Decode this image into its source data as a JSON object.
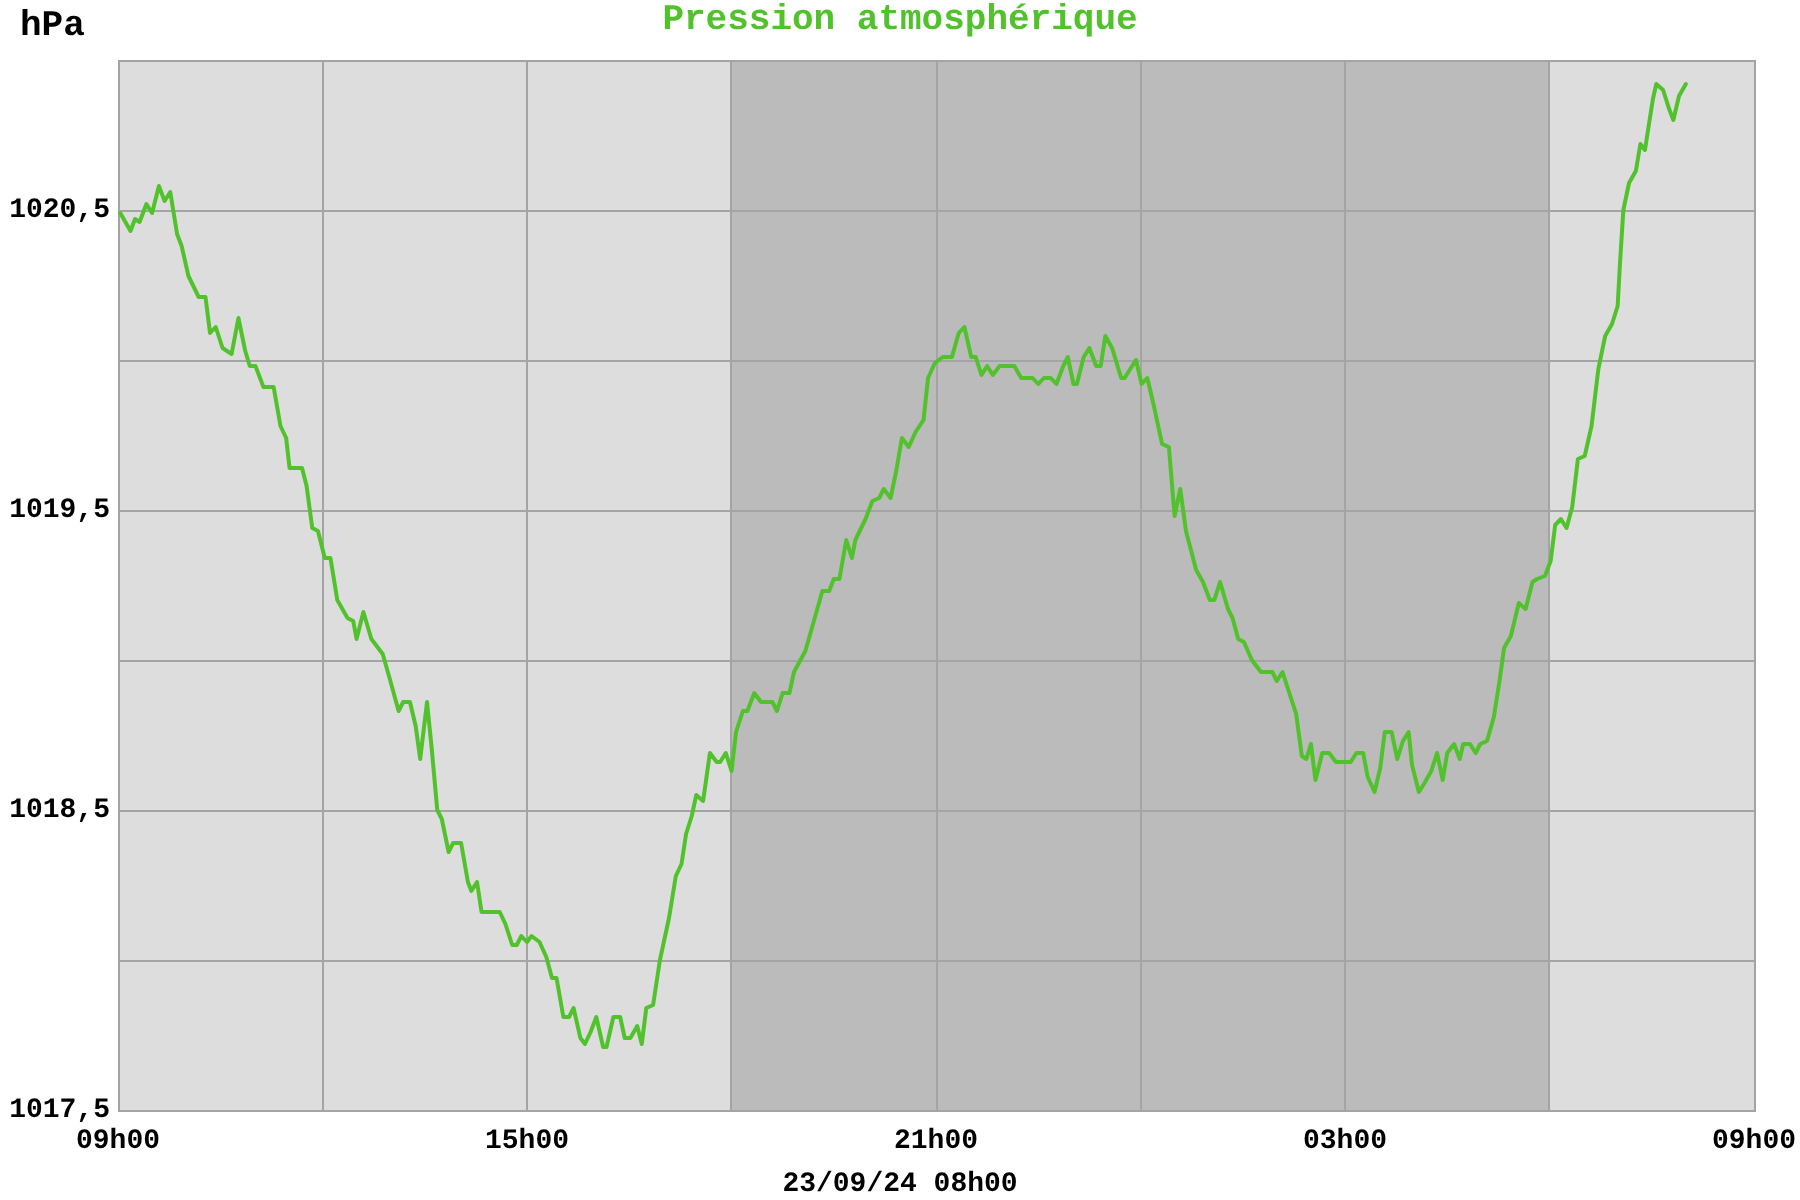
{
  "chart_data": {
    "type": "line",
    "title": "Pression atmosphérique",
    "xlabel": "23/09/24 08h00",
    "ylabel": "hPa",
    "x": [
      "--09-22T09:02",
      "--09-22T09:11",
      "--09-22T09:15",
      "--09-22T09:19",
      "--09-22T09:25",
      "--09-22T09:30",
      "--09-22T09:36",
      "--09-22T09:41",
      "--09-22T09:46",
      "--09-22T09:52",
      "--09-22T09:56",
      "--09-22T10:02",
      "--09-22T10:11",
      "--09-22T10:17",
      "--09-22T10:21",
      "--09-22T10:26",
      "--09-22T10:32",
      "--09-22T10:40",
      "--09-22T10:46",
      "--09-22T10:52",
      "--09-22T10:56",
      "--09-22T11:01",
      "--09-22T11:08",
      "--09-22T11:17",
      "--09-22T11:23",
      "--09-22T11:28",
      "--09-22T11:31",
      "--09-22T11:42",
      "--09-22T11:46",
      "--09-22T11:51",
      "--09-22T11:56",
      "--09-22T12:02",
      "--09-22T12:07",
      "--09-22T12:13",
      "--09-22T12:22",
      "--09-22T12:27",
      "--09-22T12:30",
      "--09-22T12:36",
      "--09-22T12:43",
      "--09-22T12:53",
      "--09-22T12:59",
      "--09-22T13:07",
      "--09-22T13:11",
      "--09-22T13:17",
      "--09-22T13:22",
      "--09-22T13:26",
      "--09-22T13:32",
      "--09-22T13:36",
      "--09-22T13:41",
      "--09-22T13:45",
      "--09-22T13:51",
      "--09-22T13:55",
      "--09-22T14:02",
      "--09-22T14:08",
      "--09-22T14:11",
      "--09-22T14:16",
      "--09-22T14:20",
      "--09-22T14:36",
      "--09-22T14:41",
      "--09-22T14:47",
      "--09-22T14:51",
      "--09-22T14:55",
      "--09-22T15:00",
      "--09-22T15:04",
      "--09-22T15:11",
      "--09-22T15:17",
      "--09-22T15:22",
      "--09-22T15:26",
      "--09-22T15:32",
      "--09-22T15:37",
      "--09-22T15:41",
      "--09-22T15:47",
      "--09-22T15:51",
      "--09-22T15:56",
      "--09-22T16:01",
      "--09-22T16:07",
      "--09-22T16:10",
      "--09-22T16:16",
      "--09-22T16:22",
      "--09-22T16:26",
      "--09-22T16:31",
      "--09-22T16:37",
      "--09-22T16:41",
      "--09-22T16:45",
      "--09-22T16:51",
      "--09-22T16:57",
      "--09-22T17:05",
      "--09-22T17:11",
      "--09-22T17:16",
      "--09-22T17:20",
      "--09-22T17:25",
      "--09-22T17:29",
      "--09-22T17:35",
      "--09-22T17:41",
      "--09-22T17:47",
      "--09-22T17:50",
      "--09-22T17:55",
      "--09-22T18:00",
      "--09-22T18:04",
      "--09-22T18:10",
      "--09-22T18:14",
      "--09-22T18:20",
      "--09-22T18:26",
      "--09-22T18:36",
      "--09-22T18:40",
      "--09-22T18:45",
      "--09-22T18:51",
      "--09-22T18:55",
      "--09-22T19:05",
      "--09-22T19:11",
      "--09-22T19:20",
      "--09-22T19:26",
      "--09-22T19:30",
      "--09-22T19:35",
      "--09-22T19:41",
      "--09-22T19:46",
      "--09-22T19:49",
      "--09-22T19:58",
      "--09-22T20:04",
      "--09-22T20:10",
      "--09-22T20:14",
      "--09-22T20:20",
      "--09-22T20:25",
      "--09-22T20:30",
      "--09-22T20:36",
      "--09-22T20:42",
      "--09-22T20:49",
      "--09-22T20:53",
      "--09-22T20:59",
      "--09-22T21:06",
      "--09-22T21:14",
      "--09-22T21:20",
      "--09-22T21:25",
      "--09-22T21:31",
      "--09-22T21:35",
      "--09-22T21:40",
      "--09-22T21:45",
      "--09-22T21:50",
      "--09-22T21:56",
      "--09-22T22:09",
      "--09-22T22:15",
      "--09-22T22:25",
      "--09-22T22:30",
      "--09-22T22:35",
      "--09-22T22:41",
      "--09-22T22:46",
      "--09-22T22:52",
      "--09-22T22:56",
      "--09-22T23:01",
      "--09-22T23:04",
      "--09-22T23:10",
      "--09-22T23:15",
      "--09-22T23:21",
      "--09-22T23:25",
      "--09-22T23:29",
      "--09-22T23:35",
      "--09-22T23:43",
      "--09-22T23:46",
      "--09-22T23:56",
      "--09-23T00:01",
      "--09-23T00:06",
      "--09-23T00:11",
      "--09-23T00:19",
      "--09-23T00:25",
      "--09-23T00:30",
      "--09-23T00:35",
      "--09-23T00:40",
      "--09-23T00:49",
      "--09-23T00:55",
      "--09-23T01:01",
      "--09-23T01:05",
      "--09-23T01:10",
      "--09-23T01:17",
      "--09-23T01:21",
      "--09-23T01:26",
      "--09-23T01:31",
      "--09-23T01:38",
      "--09-23T01:46",
      "--09-23T01:56",
      "--09-23T02:00",
      "--09-23T02:05",
      "--09-23T02:11",
      "--09-23T02:17",
      "--09-23T02:22",
      "--09-23T02:26",
      "--09-23T02:30",
      "--09-23T02:34",
      "--09-23T02:40",
      "--09-23T02:46",
      "--09-23T02:52",
      "--09-23T03:05",
      "--09-23T03:10",
      "--09-23T03:16",
      "--09-23T03:20",
      "--09-23T03:26",
      "--09-23T03:31",
      "--09-23T03:35",
      "--09-23T03:41",
      "--09-23T03:46",
      "--09-23T03:51",
      "--09-23T03:56",
      "--09-23T03:59",
      "--09-23T04:05",
      "--09-23T04:10",
      "--09-23T04:16",
      "--09-23T04:21",
      "--09-23T04:26",
      "--09-23T04:30",
      "--09-23T04:36",
      "--09-23T04:41",
      "--09-23T04:44",
      "--09-23T04:50",
      "--09-23T04:55",
      "--09-23T04:59",
      "--09-23T05:05",
      "--09-23T05:11",
      "--09-23T05:16",
      "--09-23T05:20",
      "--09-23T05:26",
      "--09-23T05:33",
      "--09-23T05:39",
      "--09-23T05:45",
      "--09-23T05:49",
      "--09-23T05:56",
      "--09-23T06:01",
      "--09-23T06:05",
      "--09-23T06:10",
      "--09-23T06:15",
      "--09-23T06:20",
      "--09-23T06:25",
      "--09-23T06:31",
      "--09-23T06:37",
      "--09-23T06:43",
      "--09-23T06:49",
      "--09-23T06:55",
      "--09-23T07:00",
      "--09-23T07:02",
      "--09-23T07:05",
      "--09-23T07:10",
      "--09-23T07:16",
      "--09-23T07:20",
      "--09-23T07:24",
      "--09-23T07:31",
      "--09-23T07:34",
      "--09-23T07:40",
      "--09-23T07:45",
      "--09-23T07:49",
      "--09-23T07:54",
      "--09-23T08:00"
    ],
    "series": [
      {
        "color": "#52c22c",
        "values": [
          1020.49,
          1020.43,
          1020.47,
          1020.46,
          1020.52,
          1020.49,
          1020.58,
          1020.53,
          1020.56,
          1020.42,
          1020.38,
          1020.28,
          1020.21,
          1020.21,
          1020.09,
          1020.11,
          1020.04,
          1020.02,
          1020.14,
          1020.03,
          1019.98,
          1019.98,
          1019.91,
          1019.91,
          1019.78,
          1019.74,
          1019.64,
          1019.64,
          1019.58,
          1019.44,
          1019.43,
          1019.34,
          1019.34,
          1019.2,
          1019.14,
          1019.13,
          1019.07,
          1019.16,
          1019.07,
          1019.02,
          1018.94,
          1018.83,
          1018.86,
          1018.86,
          1018.78,
          1018.67,
          1018.86,
          1018.71,
          1018.5,
          1018.47,
          1018.36,
          1018.39,
          1018.39,
          1018.26,
          1018.23,
          1018.26,
          1018.16,
          1018.16,
          1018.12,
          1018.05,
          1018.05,
          1018.08,
          1018.06,
          1018.08,
          1018.06,
          1018.01,
          1017.94,
          1017.94,
          1017.81,
          1017.81,
          1017.84,
          1017.74,
          1017.72,
          1017.76,
          1017.81,
          1017.71,
          1017.71,
          1017.81,
          1017.81,
          1017.74,
          1017.74,
          1017.78,
          1017.72,
          1017.84,
          1017.85,
          1018,
          1018.14,
          1018.28,
          1018.32,
          1018.42,
          1018.48,
          1018.55,
          1018.53,
          1018.69,
          1018.66,
          1018.66,
          1018.69,
          1018.63,
          1018.76,
          1018.83,
          1018.83,
          1018.89,
          1018.86,
          1018.86,
          1018.83,
          1018.89,
          1018.89,
          1018.96,
          1019.03,
          1019.11,
          1019.23,
          1019.23,
          1019.27,
          1019.27,
          1019.4,
          1019.34,
          1019.4,
          1019.47,
          1019.53,
          1019.54,
          1019.57,
          1019.54,
          1019.63,
          1019.74,
          1019.71,
          1019.76,
          1019.8,
          1019.94,
          1019.99,
          1020.01,
          1020.01,
          1020.09,
          1020.11,
          1020.01,
          1020.01,
          1019.95,
          1019.98,
          1019.95,
          1019.98,
          1019.98,
          1019.94,
          1019.94,
          1019.92,
          1019.94,
          1019.94,
          1019.92,
          1019.98,
          1020.01,
          1019.92,
          1019.92,
          1020.01,
          1020.04,
          1019.98,
          1019.98,
          1020.08,
          1020.04,
          1019.94,
          1019.94,
          1020,
          1019.92,
          1019.94,
          1019.86,
          1019.72,
          1019.71,
          1019.48,
          1019.57,
          1019.43,
          1019.3,
          1019.26,
          1019.2,
          1019.2,
          1019.26,
          1019.17,
          1019.14,
          1019.07,
          1019.06,
          1019,
          1018.96,
          1018.96,
          1018.93,
          1018.96,
          1018.89,
          1018.82,
          1018.68,
          1018.67,
          1018.72,
          1018.6,
          1018.69,
          1018.69,
          1018.66,
          1018.66,
          1018.69,
          1018.69,
          1018.61,
          1018.56,
          1018.64,
          1018.76,
          1018.76,
          1018.67,
          1018.73,
          1018.76,
          1018.65,
          1018.56,
          1018.59,
          1018.63,
          1018.69,
          1018.6,
          1018.69,
          1018.72,
          1018.67,
          1018.72,
          1018.72,
          1018.69,
          1018.72,
          1018.73,
          1018.81,
          1018.93,
          1019.04,
          1019.08,
          1019.19,
          1019.17,
          1019.26,
          1019.27,
          1019.28,
          1019.33,
          1019.45,
          1019.47,
          1019.44,
          1019.51,
          1019.67,
          1019.68,
          1019.78,
          1019.97,
          1020.08,
          1020.12,
          1020.18,
          1020.32,
          1020.5,
          1020.59,
          1020.63,
          1020.72,
          1020.7,
          1020.87,
          1020.92,
          1020.9,
          1020.84,
          1020.8,
          1020.88,
          1020.92
        ]
      }
    ],
    "xlim": [
      "--09-22T09:00",
      "--09-23T09:00"
    ],
    "xticks": [
      {
        "value": "--09-22T09:00",
        "label": "09h00"
      },
      {
        "value": "--09-22T12:00",
        "label": null
      },
      {
        "value": "--09-22T15:00",
        "label": "15h00"
      },
      {
        "value": "--09-22T18:00",
        "label": null
      },
      {
        "value": "--09-22T21:00",
        "label": "21h00"
      },
      {
        "value": "--09-23T00:00",
        "label": null
      },
      {
        "value": "--09-23T03:00",
        "label": "03h00"
      },
      {
        "value": "--09-23T06:00",
        "label": null
      },
      {
        "value": "--09-23T09:00",
        "label": "09h00"
      }
    ],
    "ylim": [
      1017.5,
      1021
    ],
    "yticks": [
      {
        "value": 1017.5,
        "label": "1017,5"
      },
      {
        "value": 1018,
        "label": null
      },
      {
        "value": 1018.5,
        "label": "1018,5"
      },
      {
        "value": 1019,
        "label": null
      },
      {
        "value": 1019.5,
        "label": "1019,5"
      },
      {
        "value": 1020,
        "label": null
      },
      {
        "value": 1020.5,
        "label": "1020,5"
      },
      {
        "value": 1021,
        "label": null
      }
    ],
    "bands": [
      {
        "axis": "x",
        "from": "--09-22T18:00",
        "to": "--09-23T06:00",
        "color": "#bbbbbb"
      }
    ],
    "grid": true,
    "marker": "none",
    "line_style": "solid"
  }
}
